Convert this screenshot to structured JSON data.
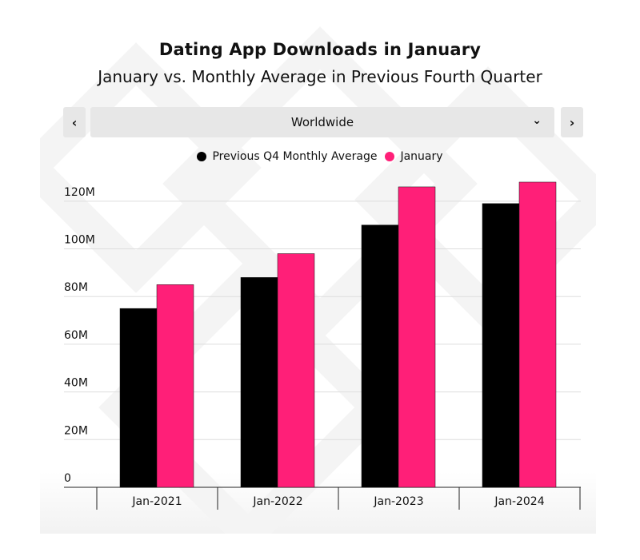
{
  "header": {
    "title": "Dating App Downloads in January",
    "subtitle": "January vs. Monthly Average in Previous Fourth Quarter"
  },
  "controls": {
    "prev_icon": "‹",
    "next_icon": "›",
    "region_value": "Worldwide",
    "chevron_icon": "⌄"
  },
  "colors": {
    "series_1": "#000000",
    "series_2": "#ff1f78"
  },
  "chart_data": {
    "type": "bar",
    "categories": [
      "Jan-2021",
      "Jan-2022",
      "Jan-2023",
      "Jan-2024"
    ],
    "series": [
      {
        "name": "Previous Q4 Monthly Average",
        "values": [
          75,
          88,
          110,
          119
        ]
      },
      {
        "name": "January",
        "values": [
          85,
          98,
          126,
          128
        ]
      }
    ],
    "ylim": [
      0,
      130
    ],
    "yticks": [
      0,
      20,
      40,
      60,
      80,
      100,
      120
    ],
    "ytick_labels": [
      "0",
      "20M",
      "40M",
      "60M",
      "80M",
      "100M",
      "120M"
    ],
    "grid": true,
    "legend": "top-center"
  }
}
